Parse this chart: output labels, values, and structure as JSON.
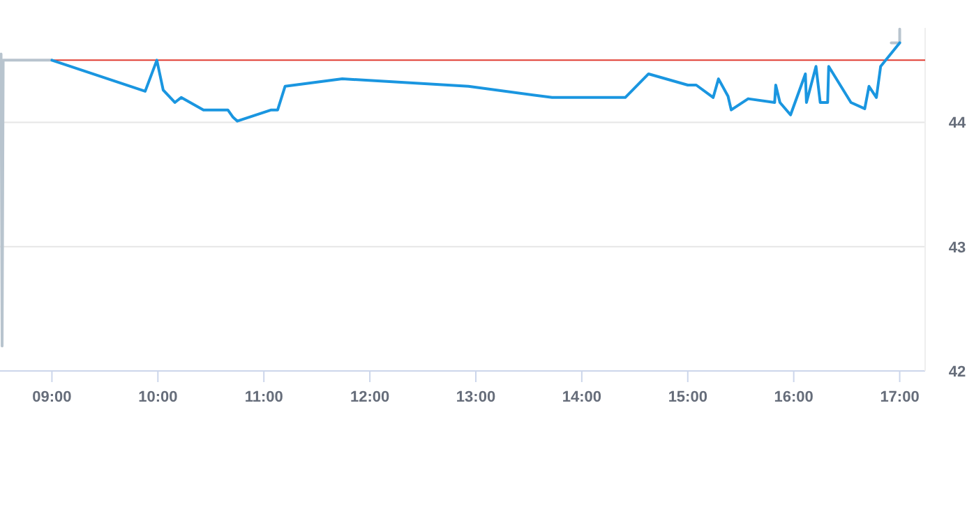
{
  "chart_data": {
    "type": "line",
    "xlim": [
      8.51,
      17.24
    ],
    "ylim": [
      42,
      44.76
    ],
    "xticks": [
      {
        "value": 9,
        "label": "09:00"
      },
      {
        "value": 10,
        "label": "10:00"
      },
      {
        "value": 11,
        "label": "11:00"
      },
      {
        "value": 12,
        "label": "12:00"
      },
      {
        "value": 13,
        "label": "13:00"
      },
      {
        "value": 14,
        "label": "14:00"
      },
      {
        "value": 15,
        "label": "15:00"
      },
      {
        "value": 16,
        "label": "16:00"
      },
      {
        "value": 17,
        "label": "17:00"
      }
    ],
    "yticks": [
      42,
      43,
      44
    ],
    "grid": "y",
    "marker": "none",
    "line_style": "solid",
    "ref_lines": [
      {
        "axis": "y",
        "value": 44.5,
        "color": "#e03c31"
      }
    ],
    "series": [
      {
        "color": "#b8c4ce",
        "x": [
          8.52,
          8.53,
          8.54,
          9.0
        ],
        "values": [
          44.55,
          42.2,
          44.5,
          44.5
        ]
      },
      {
        "color": "#b8c4ce",
        "x": [
          16.92,
          17.0,
          17.0
        ],
        "values": [
          44.64,
          44.64,
          44.75
        ]
      },
      {
        "color": "#1a96e0",
        "x": [
          9.0,
          9.88,
          9.99,
          10.05,
          10.16,
          10.22,
          10.43,
          10.66,
          10.71,
          10.75,
          11.07,
          11.13,
          11.2,
          11.74,
          12.93,
          13.72,
          14.41,
          14.63,
          15.0,
          15.08,
          15.24,
          15.29,
          15.38,
          15.41,
          15.57,
          15.82,
          15.83,
          15.87,
          15.97,
          16.11,
          16.12,
          16.21,
          16.25,
          16.32,
          16.33,
          16.54,
          16.67,
          16.71,
          16.78,
          16.82,
          17.0
        ],
        "values": [
          44.5,
          44.25,
          44.5,
          44.26,
          44.16,
          44.2,
          44.1,
          44.1,
          44.04,
          44.01,
          44.1,
          44.1,
          44.29,
          44.35,
          44.29,
          44.2,
          44.2,
          44.39,
          44.3,
          44.3,
          44.2,
          44.35,
          44.21,
          44.1,
          44.19,
          44.16,
          44.3,
          44.16,
          44.06,
          44.39,
          44.16,
          44.45,
          44.16,
          44.16,
          44.45,
          44.16,
          44.11,
          44.29,
          44.2,
          44.45,
          44.64
        ]
      }
    ]
  }
}
